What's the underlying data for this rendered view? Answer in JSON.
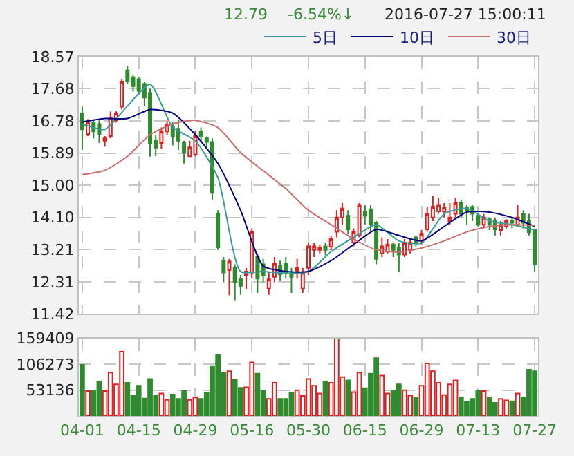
{
  "chart_data": [
    {
      "type": "candlestick",
      "tick_labels": "y",
      "annotations": [
        "12.79",
        "-6.54%↓",
        "2016-07-27 15:00:11"
      ],
      "categories": [
        null,
        null,
        null,
        null,
        null,
        null,
        null,
        null,
        null,
        null,
        null,
        null,
        null,
        null,
        null,
        null,
        null,
        null,
        null,
        null,
        null,
        null,
        null,
        null,
        null,
        null,
        null,
        null,
        null,
        null,
        null,
        null,
        null,
        null,
        null,
        null,
        null,
        null,
        null,
        null,
        null,
        null,
        null,
        null,
        null,
        null,
        null,
        null,
        null,
        null,
        null,
        null,
        null,
        null,
        null,
        null,
        null,
        null,
        null,
        null,
        null,
        null,
        null,
        null,
        null,
        null,
        null,
        null,
        null,
        null,
        null,
        null,
        null,
        null,
        null,
        null,
        null,
        null,
        null,
        null,
        null
      ],
      "ylim": [
        11.42,
        18.57
      ],
      "yticks": [
        11.42,
        12.31,
        13.21,
        {
          "value": 14.1,
          "label": "14.10"
        },
        {
          "value": 15.0,
          "label": "15.00"
        },
        15.89,
        16.78,
        17.68,
        18.57
      ],
      "grid": true,
      "legend": "top right",
      "colors": [
        "#2e8b2e",
        "#e02020",
        "#2e8b2e",
        "#2e8b2e",
        "#e02020",
        "#e02020",
        "#e02020",
        "#e02020",
        "#2e8b2e",
        "#2e8b2e",
        "#2e8b2e",
        "#2e8b2e",
        "#2e8b2e",
        "#2e8b2e",
        "#e02020",
        "#e02020",
        "#2e8b2e",
        "#2e8b2e",
        "#2e8b2e",
        "#e02020",
        "#e02020",
        "#2e8b2e",
        "#2e8b2e",
        "#2e8b2e",
        "#2e8b2e",
        "#2e8b2e",
        "#e02020",
        "#2e8b2e",
        "#2e8b2e",
        "#e02020",
        "#e02020",
        "#2e8b2e",
        "#2e8b2e",
        "#e02020",
        "#e02020",
        "#2e8b2e",
        "#2e8b2e",
        "#2e8b2e",
        "#e02020",
        "#e02020",
        "#e02020",
        "#e02020",
        "#e02020",
        "#2e8b2e",
        "#e02020",
        "#e02020",
        "#e02020",
        "#2e8b2e",
        "#e02020",
        "#e02020",
        "#2e8b2e",
        "#2e8b2e",
        "#2e8b2e",
        "#e02020",
        "#e02020",
        "#2e8b2e",
        "#2e8b2e",
        "#e02020",
        "#e02020",
        "#2e8b2e",
        "#e02020",
        "#e02020",
        "#e02020",
        "#e02020",
        "#e02020",
        "#e02020",
        "#e02020",
        "#2e8b2e",
        "#2e8b2e",
        "#2e8b2e",
        "#2e8b2e",
        "#e02020",
        "#2e8b2e",
        "#2e8b2e",
        "#e02020",
        "#e02020",
        "#2e8b2e",
        "#e02020",
        "#2e8b2e",
        "#2e8b2e",
        "#2e8b2e"
      ],
      "ohlc": [
        [
          16.99,
          17.18,
          15.98,
          16.55
        ],
        [
          16.42,
          16.83,
          16.36,
          16.74
        ],
        [
          16.74,
          16.83,
          16.3,
          16.49
        ],
        [
          16.7,
          16.8,
          16.17,
          16.42
        ],
        [
          16.23,
          16.36,
          16.07,
          16.3
        ],
        [
          16.36,
          17.05,
          16.3,
          16.86
        ],
        [
          16.8,
          17.05,
          16.74,
          16.99
        ],
        [
          17.18,
          17.95,
          17.1,
          17.88
        ],
        [
          18.19,
          18.32,
          17.82,
          17.88
        ],
        [
          18.0,
          18.07,
          17.6,
          17.75
        ],
        [
          17.94,
          18.0,
          17.5,
          17.62
        ],
        [
          17.81,
          17.88,
          17.2,
          17.43
        ],
        [
          17.56,
          17.68,
          15.79,
          16.17
        ],
        [
          16.23,
          16.4,
          15.8,
          16.04
        ],
        [
          16.17,
          16.6,
          16.0,
          16.49
        ],
        [
          16.49,
          16.8,
          16.4,
          16.68
        ],
        [
          16.61,
          16.74,
          16.1,
          16.36
        ],
        [
          16.57,
          16.8,
          15.98,
          16.23
        ],
        [
          16.17,
          16.23,
          15.6,
          15.92
        ],
        [
          15.8,
          16.23,
          15.79,
          16.05
        ],
        [
          15.85,
          16.5,
          15.8,
          16.36
        ],
        [
          16.49,
          16.6,
          16.2,
          16.36
        ],
        [
          16.3,
          16.35,
          16.0,
          16.2
        ],
        [
          16.2,
          16.3,
          14.6,
          14.78
        ],
        [
          14.21,
          14.3,
          13.2,
          13.27
        ],
        [
          12.91,
          13.0,
          12.3,
          12.57
        ],
        [
          12.64,
          12.95,
          11.94,
          12.88
        ],
        [
          12.7,
          12.8,
          11.8,
          12.3
        ],
        [
          12.4,
          12.5,
          11.95,
          12.2
        ],
        [
          12.5,
          12.7,
          12.1,
          12.6
        ],
        [
          12.57,
          13.8,
          12.4,
          13.7
        ],
        [
          13.0,
          13.1,
          12.0,
          12.4
        ],
        [
          12.8,
          12.95,
          12.3,
          12.48
        ],
        [
          12.12,
          12.6,
          11.95,
          12.38
        ],
        [
          12.45,
          13.0,
          12.3,
          12.82
        ],
        [
          12.77,
          12.9,
          12.35,
          12.52
        ],
        [
          12.82,
          13.0,
          12.4,
          12.57
        ],
        [
          12.57,
          12.7,
          12.0,
          12.45
        ],
        [
          12.62,
          12.95,
          12.4,
          12.7
        ],
        [
          12.12,
          12.7,
          12.0,
          12.57
        ],
        [
          12.7,
          13.4,
          12.5,
          13.3
        ],
        [
          13.2,
          13.4,
          13.0,
          13.3
        ],
        [
          13.2,
          13.35,
          13.1,
          13.27
        ],
        [
          13.3,
          13.4,
          13.05,
          13.2
        ],
        [
          13.29,
          13.6,
          13.2,
          13.5
        ],
        [
          13.7,
          14.3,
          13.55,
          14.1
        ],
        [
          14.1,
          14.5,
          13.9,
          14.35
        ],
        [
          14.15,
          14.3,
          13.65,
          13.77
        ],
        [
          13.4,
          13.8,
          13.3,
          13.7
        ],
        [
          13.6,
          14.5,
          13.55,
          14.45
        ],
        [
          14.27,
          14.45,
          13.9,
          14.15
        ],
        [
          14.33,
          14.45,
          13.7,
          13.9
        ],
        [
          13.95,
          14.0,
          12.8,
          12.95
        ],
        [
          13.1,
          13.55,
          13.0,
          13.3
        ],
        [
          13.15,
          13.5,
          13.1,
          13.35
        ],
        [
          13.35,
          13.4,
          13.0,
          13.2
        ],
        [
          13.27,
          13.4,
          12.6,
          13.07
        ],
        [
          13.07,
          13.5,
          13.0,
          13.4
        ],
        [
          13.2,
          13.5,
          13.1,
          13.4
        ],
        [
          13.55,
          13.6,
          13.3,
          13.42
        ],
        [
          13.45,
          13.75,
          13.35,
          13.65
        ],
        [
          13.77,
          14.4,
          13.7,
          14.2
        ],
        [
          14.1,
          14.7,
          14.0,
          14.4
        ],
        [
          14.27,
          14.65,
          14.2,
          14.45
        ],
        [
          14.27,
          14.5,
          14.1,
          14.38
        ],
        [
          14.0,
          14.5,
          13.9,
          14.1
        ],
        [
          14.2,
          14.65,
          14.1,
          14.5
        ],
        [
          14.5,
          14.6,
          14.1,
          14.2
        ],
        [
          14.38,
          14.45,
          13.9,
          14.3
        ],
        [
          14.4,
          14.45,
          14.0,
          14.2
        ],
        [
          14.15,
          14.2,
          13.85,
          13.9
        ],
        [
          13.9,
          14.2,
          13.8,
          14.1
        ],
        [
          14.05,
          14.1,
          13.75,
          13.9
        ],
        [
          14.0,
          14.1,
          13.6,
          13.77
        ],
        [
          13.75,
          14.0,
          13.6,
          13.9
        ],
        [
          13.85,
          14.05,
          13.8,
          14.0
        ],
        [
          14.0,
          14.1,
          13.8,
          13.95
        ],
        [
          13.9,
          14.45,
          13.85,
          14.1
        ],
        [
          14.2,
          14.3,
          13.8,
          13.95
        ],
        [
          14.0,
          14.2,
          13.6,
          13.69
        ],
        [
          13.77,
          13.8,
          12.6,
          12.79
        ]
      ],
      "series": [
        {
          "type": "line",
          "name": "5日",
          "color": "#3a9a9a",
          "values": [
            16.7,
            null,
            null,
            null,
            16.55,
            null,
            null,
            null,
            17.2,
            null,
            null,
            null,
            17.8,
            null,
            null,
            null,
            16.61,
            null,
            null,
            null,
            16.23,
            null,
            null,
            null,
            15.2,
            null,
            null,
            null,
            12.6,
            null,
            null,
            null,
            12.6,
            null,
            null,
            null,
            12.55,
            null,
            null,
            null,
            12.6,
            null,
            null,
            null,
            13.15,
            null,
            null,
            null,
            13.55,
            null,
            null,
            null,
            13.9,
            null,
            null,
            null,
            13.45,
            null,
            null,
            null,
            13.39,
            null,
            null,
            null,
            14.2,
            null,
            null,
            null,
            14.35,
            null,
            null,
            null,
            14.0,
            null,
            null,
            null,
            13.9,
            null,
            null,
            null,
            13.75
          ]
        },
        {
          "type": "line",
          "name": "10日",
          "color": "#000080",
          "values": [
            16.75,
            null,
            null,
            null,
            16.85,
            null,
            null,
            null,
            16.85,
            null,
            null,
            null,
            17.1,
            null,
            null,
            null,
            17.0,
            null,
            null,
            null,
            16.4,
            null,
            null,
            null,
            15.6,
            null,
            null,
            null,
            14.3,
            null,
            null,
            null,
            12.75,
            null,
            null,
            null,
            12.6,
            null,
            null,
            null,
            12.6,
            null,
            null,
            null,
            12.9,
            null,
            null,
            null,
            13.35,
            null,
            null,
            null,
            13.77,
            null,
            null,
            null,
            13.6,
            null,
            null,
            null,
            13.45,
            null,
            null,
            null,
            13.85,
            null,
            null,
            null,
            14.25,
            null,
            null,
            null,
            14.25,
            null,
            null,
            null,
            14.1,
            null,
            null,
            null,
            13.85
          ]
        },
        {
          "type": "line",
          "name": "30日",
          "color": "#c87070",
          "values": [
            15.29,
            null,
            null,
            null,
            15.41,
            null,
            null,
            null,
            15.8,
            null,
            null,
            null,
            16.4,
            null,
            null,
            null,
            16.7,
            null,
            null,
            null,
            16.8,
            null,
            null,
            null,
            16.6,
            null,
            null,
            null,
            15.9,
            null,
            null,
            null,
            15.4,
            null,
            null,
            null,
            14.9,
            null,
            null,
            null,
            14.3,
            null,
            null,
            null,
            13.9,
            null,
            null,
            null,
            13.5,
            null,
            null,
            null,
            13.2,
            null,
            null,
            null,
            13.14,
            null,
            null,
            null,
            13.25,
            null,
            null,
            null,
            13.45,
            null,
            null,
            null,
            13.7,
            null,
            null,
            null,
            13.85,
            null,
            null,
            null,
            13.9,
            null,
            null,
            null,
            13.88
          ]
        }
      ]
    },
    {
      "type": "bar",
      "ylim": [
        0,
        159409
      ],
      "yticks": [
        53136,
        106273,
        159409
      ],
      "grid": true,
      "categories": [
        "04-01",
        null,
        null,
        null,
        null,
        null,
        null,
        null,
        null,
        null,
        "04-15",
        null,
        null,
        null,
        null,
        null,
        null,
        null,
        null,
        null,
        "04-29",
        null,
        null,
        null,
        null,
        null,
        null,
        null,
        null,
        null,
        "05-16",
        null,
        null,
        null,
        null,
        null,
        null,
        null,
        null,
        null,
        "05-30",
        null,
        null,
        null,
        null,
        null,
        null,
        null,
        null,
        null,
        "06-15",
        null,
        null,
        null,
        null,
        null,
        null,
        null,
        null,
        null,
        "06-29",
        null,
        null,
        null,
        null,
        null,
        null,
        null,
        null,
        null,
        "07-13",
        null,
        null,
        null,
        null,
        null,
        null,
        null,
        null,
        null,
        "07-27"
      ],
      "colors": [
        "#2e8b2e",
        "#e02020",
        "#2e8b2e",
        "#2e8b2e",
        "#e02020",
        "#e02020",
        "#e02020",
        "#e02020",
        "#2e8b2e",
        "#2e8b2e",
        "#2e8b2e",
        "#2e8b2e",
        "#2e8b2e",
        "#2e8b2e",
        "#e02020",
        "#e02020",
        "#2e8b2e",
        "#2e8b2e",
        "#2e8b2e",
        "#e02020",
        "#e02020",
        "#2e8b2e",
        "#2e8b2e",
        "#2e8b2e",
        "#2e8b2e",
        "#2e8b2e",
        "#e02020",
        "#2e8b2e",
        "#2e8b2e",
        "#e02020",
        "#e02020",
        "#2e8b2e",
        "#2e8b2e",
        "#e02020",
        "#e02020",
        "#2e8b2e",
        "#2e8b2e",
        "#2e8b2e",
        "#e02020",
        "#e02020",
        "#e02020",
        "#e02020",
        "#e02020",
        "#2e8b2e",
        "#e02020",
        "#e02020",
        "#e02020",
        "#2e8b2e",
        "#e02020",
        "#e02020",
        "#2e8b2e",
        "#2e8b2e",
        "#2e8b2e",
        "#e02020",
        "#e02020",
        "#2e8b2e",
        "#2e8b2e",
        "#e02020",
        "#e02020",
        "#2e8b2e",
        "#e02020",
        "#e02020",
        "#e02020",
        "#e02020",
        "#e02020",
        "#e02020",
        "#e02020",
        "#2e8b2e",
        "#2e8b2e",
        "#2e8b2e",
        "#2e8b2e",
        "#e02020",
        "#2e8b2e",
        "#2e8b2e",
        "#e02020",
        "#e02020",
        "#2e8b2e",
        "#e02020",
        "#2e8b2e",
        "#2e8b2e",
        "#2e8b2e"
      ],
      "values": [
        105000,
        51000,
        51000,
        71000,
        51000,
        89000,
        65000,
        132000,
        68000,
        41000,
        62000,
        36000,
        76000,
        41000,
        46000,
        33000,
        44000,
        35000,
        51000,
        33000,
        38000,
        35000,
        47000,
        101000,
        125000,
        89000,
        92000,
        74000,
        58000,
        59000,
        110000,
        87000,
        51000,
        35000,
        68000,
        35000,
        35000,
        47000,
        53000,
        41000,
        76000,
        62000,
        46000,
        71000,
        68000,
        159000,
        80000,
        73000,
        49000,
        89000,
        57000,
        87000,
        119000,
        83000,
        46000,
        51000,
        65000,
        53000,
        42000,
        38000,
        62000,
        108000,
        92000,
        68000,
        43000,
        65000,
        73000,
        38000,
        29000,
        35000,
        51000,
        51000,
        38000,
        27000,
        35000,
        32000,
        30000,
        46000,
        38000,
        95000,
        92000
      ]
    }
  ]
}
